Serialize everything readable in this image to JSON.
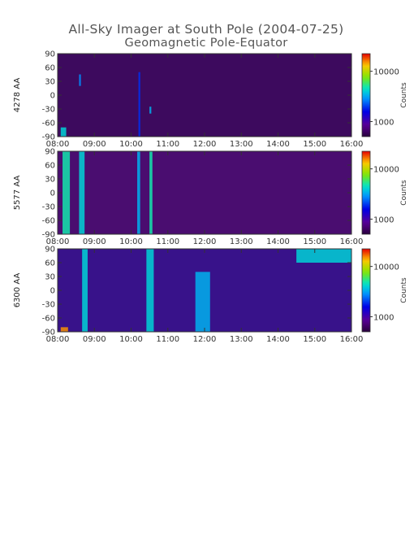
{
  "title": "All-Sky Imager at South Pole (2004-07-25)",
  "subtitle": "Geomagnetic Pole-Equator",
  "chart_data": [
    {
      "type": "heatmap",
      "ylabel": "4278 AA",
      "colorbar_label": "Counts",
      "colorbar_ticks": [
        "10000",
        "1000"
      ],
      "colorbar_values": [
        10000,
        1000
      ],
      "x_ticks": [
        "08:00",
        "09:00",
        "10:00",
        "11:00",
        "12:00",
        "13:00",
        "14:00",
        "15:00",
        "16:00"
      ],
      "y_ticks": [
        "90",
        "60",
        "30",
        "0",
        "-30",
        "-60",
        "-90"
      ],
      "y_values": [
        90,
        60,
        30,
        0,
        -30,
        -60,
        -90
      ],
      "xlim": [
        "08:00",
        "16:00"
      ],
      "ylim": [
        -90,
        90
      ],
      "features": [
        {
          "t": "08:05",
          "dt": 0.15,
          "y0": -90,
          "y1": -70,
          "intensity": 0.55
        },
        {
          "t": "08:35",
          "dt": 0.05,
          "y0": 20,
          "y1": 45,
          "intensity": 0.45
        },
        {
          "t": "10:12",
          "dt": 0.05,
          "y0": -90,
          "y1": 50,
          "intensity": 0.35
        },
        {
          "t": "10:30",
          "dt": 0.05,
          "y0": -40,
          "y1": -25,
          "intensity": 0.5
        }
      ]
    },
    {
      "type": "heatmap",
      "ylabel": "5577 AA",
      "colorbar_label": "Counts",
      "colorbar_ticks": [
        "10000",
        "1000"
      ],
      "colorbar_values": [
        10000,
        1000
      ],
      "x_ticks": [
        "08:00",
        "09:00",
        "10:00",
        "11:00",
        "12:00",
        "13:00",
        "14:00",
        "15:00",
        "16:00"
      ],
      "y_ticks": [
        "90",
        "60",
        "30",
        "0",
        "-30",
        "-60",
        "-90"
      ],
      "y_values": [
        90,
        60,
        30,
        0,
        -30,
        -60,
        -90
      ],
      "xlim": [
        "08:00",
        "16:00"
      ],
      "ylim": [
        -90,
        90
      ],
      "features": [
        {
          "t": "08:08",
          "dt": 0.2,
          "y0": -90,
          "y1": 90,
          "intensity": 0.6
        },
        {
          "t": "08:35",
          "dt": 0.15,
          "y0": -90,
          "y1": 90,
          "intensity": 0.55
        },
        {
          "t": "10:10",
          "dt": 0.08,
          "y0": -90,
          "y1": 90,
          "intensity": 0.5
        },
        {
          "t": "10:30",
          "dt": 0.08,
          "y0": -90,
          "y1": 90,
          "intensity": 0.6
        }
      ]
    },
    {
      "type": "heatmap",
      "ylabel": "6300 AA",
      "colorbar_label": "Counts",
      "colorbar_ticks": [
        "10000",
        "1000"
      ],
      "colorbar_values": [
        10000,
        1000
      ],
      "x_ticks": [
        "08:00",
        "09:00",
        "10:00",
        "11:00",
        "12:00",
        "13:00",
        "14:00",
        "15:00",
        "16:00"
      ],
      "y_ticks": [
        "90",
        "60",
        "30",
        "0",
        "-30",
        "-60",
        "-90"
      ],
      "y_values": [
        90,
        60,
        30,
        0,
        -30,
        -60,
        -90
      ],
      "xlim": [
        "08:00",
        "16:00"
      ],
      "ylim": [
        -90,
        90
      ],
      "features": [
        {
          "t": "08:05",
          "dt": 0.2,
          "y0": -90,
          "y1": -80,
          "intensity": 0.9
        },
        {
          "t": "08:40",
          "dt": 0.15,
          "y0": -90,
          "y1": 90,
          "intensity": 0.55
        },
        {
          "t": "10:25",
          "dt": 0.2,
          "y0": -90,
          "y1": 90,
          "intensity": 0.55
        },
        {
          "t": "11:45",
          "dt": 0.4,
          "y0": -90,
          "y1": 40,
          "intensity": 0.5
        },
        {
          "t": "14:30",
          "dt": 2.0,
          "y0": 60,
          "y1": 90,
          "intensity": 0.55
        }
      ]
    }
  ]
}
